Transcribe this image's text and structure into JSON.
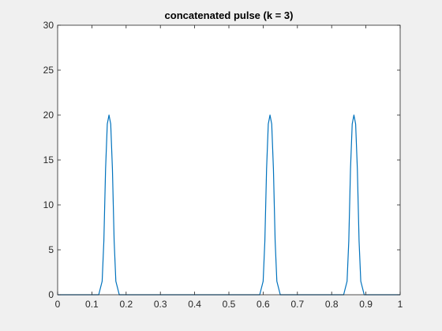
{
  "chart_data": {
    "type": "line",
    "title": "concatenated pulse (k = 3)",
    "xlabel": "",
    "ylabel": "",
    "xlim": [
      0,
      1
    ],
    "ylim": [
      0,
      30
    ],
    "x_ticks": [
      0,
      0.1,
      0.2,
      0.3,
      0.4,
      0.5,
      0.6,
      0.7,
      0.8,
      0.9,
      1
    ],
    "y_ticks": [
      0,
      5,
      10,
      15,
      20,
      25,
      30
    ],
    "grid": false,
    "legend": "none",
    "series": [
      {
        "color": "#0072bd",
        "x": [
          0,
          0.12,
          0.13,
          0.135,
          0.14,
          0.145,
          0.15,
          0.155,
          0.16,
          0.165,
          0.17,
          0.18,
          0.59,
          0.6,
          0.605,
          0.61,
          0.615,
          0.62,
          0.625,
          0.63,
          0.635,
          0.64,
          0.65,
          0.835,
          0.845,
          0.85,
          0.855,
          0.86,
          0.865,
          0.87,
          0.875,
          0.88,
          0.885,
          0.895,
          1
        ],
        "y": [
          0,
          0,
          1.5,
          6,
          14,
          19,
          20,
          19,
          14,
          6,
          1.5,
          0,
          0,
          1.5,
          6,
          14,
          19,
          20,
          19,
          14,
          6,
          1.5,
          0,
          0,
          1.5,
          6,
          14,
          19,
          20,
          19,
          14,
          6,
          1.5,
          0,
          0
        ]
      }
    ]
  }
}
